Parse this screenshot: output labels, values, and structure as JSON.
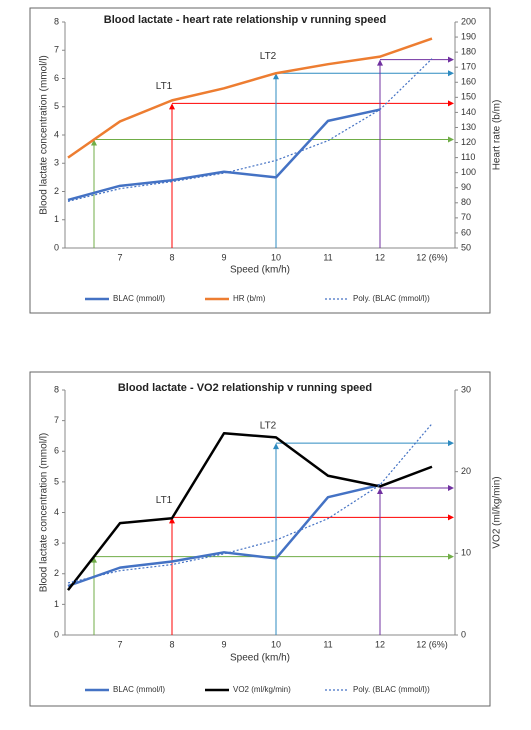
{
  "chart_data": [
    {
      "type": "line",
      "title": "Blood lactate - heart rate relationship v running speed",
      "x_label": "Speed (km/h)",
      "y_label": "Blood lactate concentration (mmol/l)",
      "y2_label": "Heart rate (b/m)",
      "categories": [
        null,
        "7",
        "8",
        "9",
        "10",
        "11",
        "12",
        "12 (6%)"
      ],
      "series": [
        {
          "name": "BLAC (mmol/l)",
          "color": "#4472c4",
          "values": [
            1.7,
            2.2,
            2.4,
            2.7,
            2.5,
            4.5,
            4.9,
            null
          ]
        },
        {
          "name": "HR (b/m)",
          "color": "#ed7d31",
          "axis": "y2",
          "values": [
            110,
            134,
            148,
            156,
            166,
            172,
            177,
            189
          ]
        },
        {
          "name": "Poly. (BLAC (mmol/l))",
          "color": "#4472c4",
          "dotted": true,
          "values": [
            1.65,
            2.1,
            2.35,
            2.65,
            3.1,
            3.8,
            4.9,
            6.7
          ]
        }
      ],
      "ylim": [
        0,
        8
      ],
      "yticks": [
        0,
        1,
        2,
        3,
        4,
        5,
        6,
        7,
        8
      ],
      "y2lim": [
        50,
        200
      ],
      "y2ticks": [
        50,
        60,
        70,
        80,
        90,
        100,
        110,
        120,
        130,
        140,
        150,
        160,
        170,
        180,
        190,
        200
      ],
      "guides": [
        {
          "x": 0.5,
          "value": 122,
          "color": "#70ad47"
        },
        {
          "x": 2,
          "value": 146,
          "color": "#ff0000",
          "label": "LT1"
        },
        {
          "x": 4,
          "value": 166,
          "color": "#2e8bc0",
          "label": "LT2"
        },
        {
          "x": 6,
          "value": 175,
          "color": "#7030a0"
        }
      ]
    },
    {
      "type": "line",
      "title": "Blood lactate - VO2 relationship v running speed",
      "x_label": "Speed (km/h)",
      "y_label": "Blood lactate concentration (mmol/l)",
      "y2_label": "VO2 (ml/kg/min)",
      "categories": [
        null,
        "7",
        "8",
        "9",
        "10",
        "11",
        "12",
        "12 (6%)"
      ],
      "series": [
        {
          "name": "BLAC (mmol/l)",
          "color": "#4472c4",
          "values": [
            1.6,
            2.2,
            2.4,
            2.7,
            2.5,
            4.5,
            4.9,
            null
          ]
        },
        {
          "name": "VO2 (ml/kg/min)",
          "color": "#000000",
          "axis": "y2",
          "values": [
            5.5,
            13.7,
            14.3,
            24.7,
            24.2,
            19.5,
            18.2,
            20.6
          ]
        },
        {
          "name": "Poly. (BLAC (mmol/l))",
          "color": "#4472c4",
          "dotted": true,
          "values": [
            1.7,
            2.1,
            2.3,
            2.65,
            3.1,
            3.8,
            4.9,
            6.9
          ]
        }
      ],
      "ylim": [
        0,
        8
      ],
      "yticks": [
        0,
        1,
        2,
        3,
        4,
        5,
        6,
        7,
        8
      ],
      "y2lim": [
        0,
        30
      ],
      "y2ticks": [
        0,
        10,
        20,
        30
      ],
      "guides": [
        {
          "x": 0.5,
          "value": 9.6,
          "color": "#70ad47"
        },
        {
          "x": 2,
          "value": 14.4,
          "color": "#ff0000",
          "label": "LT1"
        },
        {
          "x": 4,
          "value": 23.5,
          "color": "#2e8bc0",
          "label": "LT2"
        },
        {
          "x": 6,
          "value": 18,
          "color": "#7030a0"
        }
      ]
    }
  ]
}
